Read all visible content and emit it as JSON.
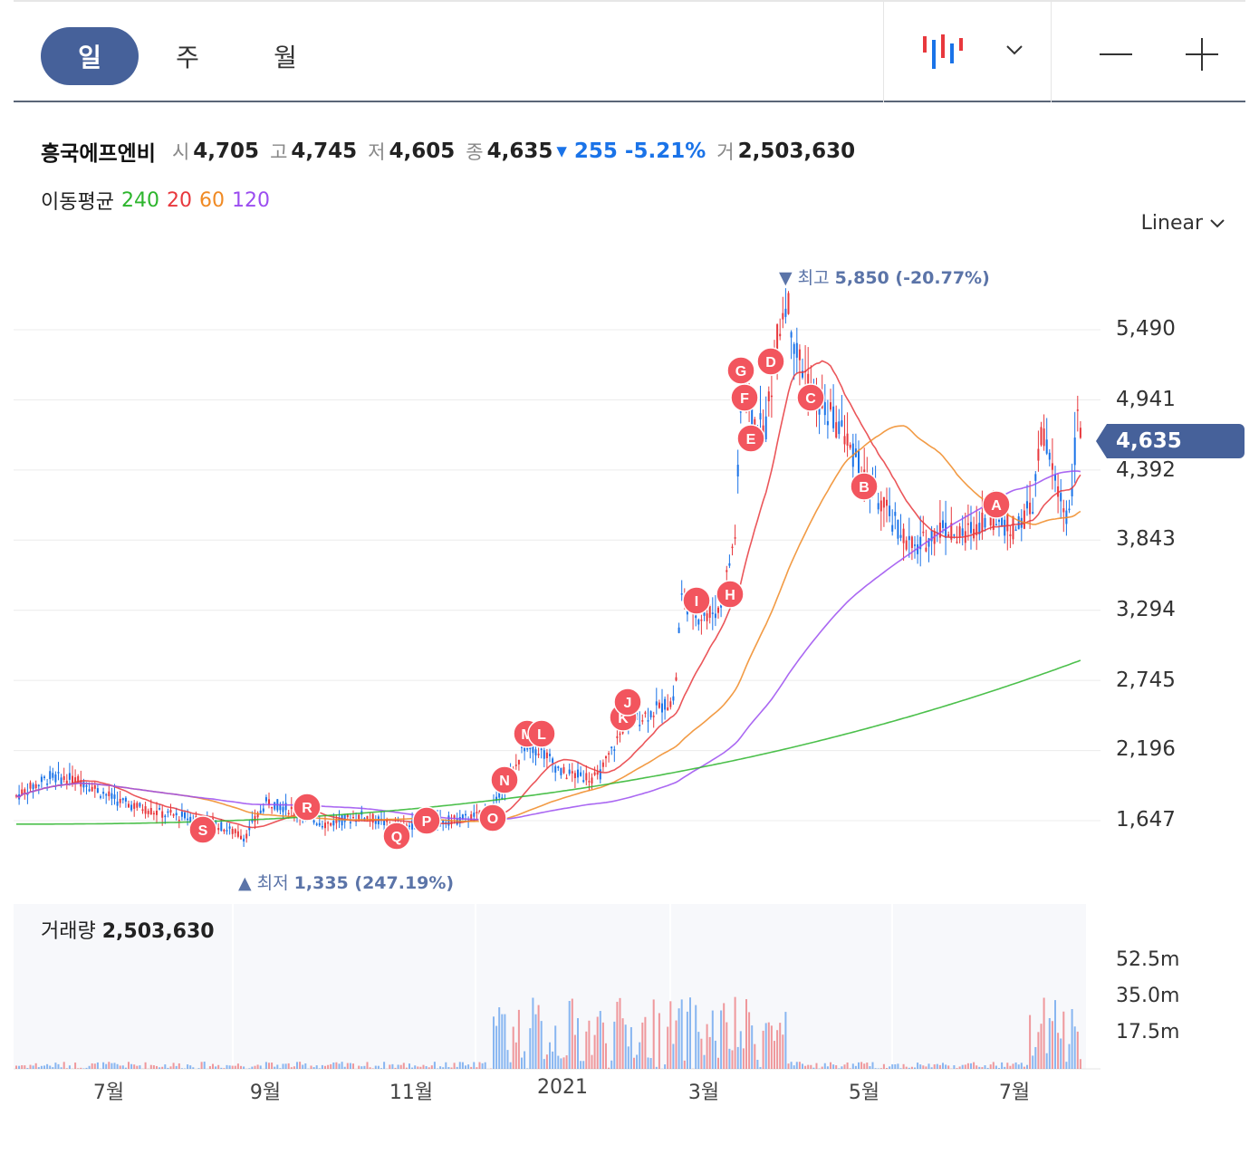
{
  "tabs": [
    {
      "label": "일",
      "active": true
    },
    {
      "label": "주",
      "active": false
    },
    {
      "label": "월",
      "active": false
    }
  ],
  "toolbar": {
    "chart_type_icon": "candlestick-icon",
    "dropdown_icon": "chevron-down-icon",
    "zoom_out_icon": "minus-icon",
    "zoom_in_icon": "plus-icon"
  },
  "stock": {
    "name": "흥국에프엔비",
    "open_label": "시",
    "open": "4,705",
    "high_label": "고",
    "high": "4,745",
    "low_label": "저",
    "low": "4,605",
    "close_label": "종",
    "close": "4,635",
    "change": "▾ 255",
    "change_pct": "-5.21%",
    "volume_label": "거",
    "volume": "2,503,630"
  },
  "moving_average": {
    "label": "이동평균",
    "periods": [
      {
        "value": "240",
        "color": "#2db52d"
      },
      {
        "value": "20",
        "color": "#e8383d"
      },
      {
        "value": "60",
        "color": "#f08a24"
      },
      {
        "value": "120",
        "color": "#9b4df0"
      }
    ]
  },
  "scale_select": {
    "value": "Linear"
  },
  "price_axis": [
    "5,490",
    "4,941",
    "4,392",
    "3,843",
    "3,294",
    "2,745",
    "2,196",
    "1,647"
  ],
  "current_price": "4,635",
  "high_note": {
    "prefix": "▼ 최고",
    "value": "5,850 (-20.77%)"
  },
  "low_note": {
    "prefix": "▲ 최저",
    "value": "1,335 (247.19%)"
  },
  "volume_panel": {
    "label": "거래량",
    "value": "2,503,630",
    "axis": [
      "52.5m",
      "35.0m",
      "17.5m"
    ]
  },
  "x_axis": [
    "7월",
    "9월",
    "11월",
    "2021",
    "3월",
    "5월",
    "7월"
  ],
  "markers": [
    "S",
    "R",
    "Q",
    "P",
    "O",
    "N",
    "M",
    "L",
    "K",
    "J",
    "I",
    "H",
    "G",
    "F",
    "E",
    "D",
    "C",
    "B",
    "A"
  ],
  "colors": {
    "up": "#e8383d",
    "down": "#1a73e8",
    "accent": "#46619a",
    "marker": "#f2555e"
  }
}
